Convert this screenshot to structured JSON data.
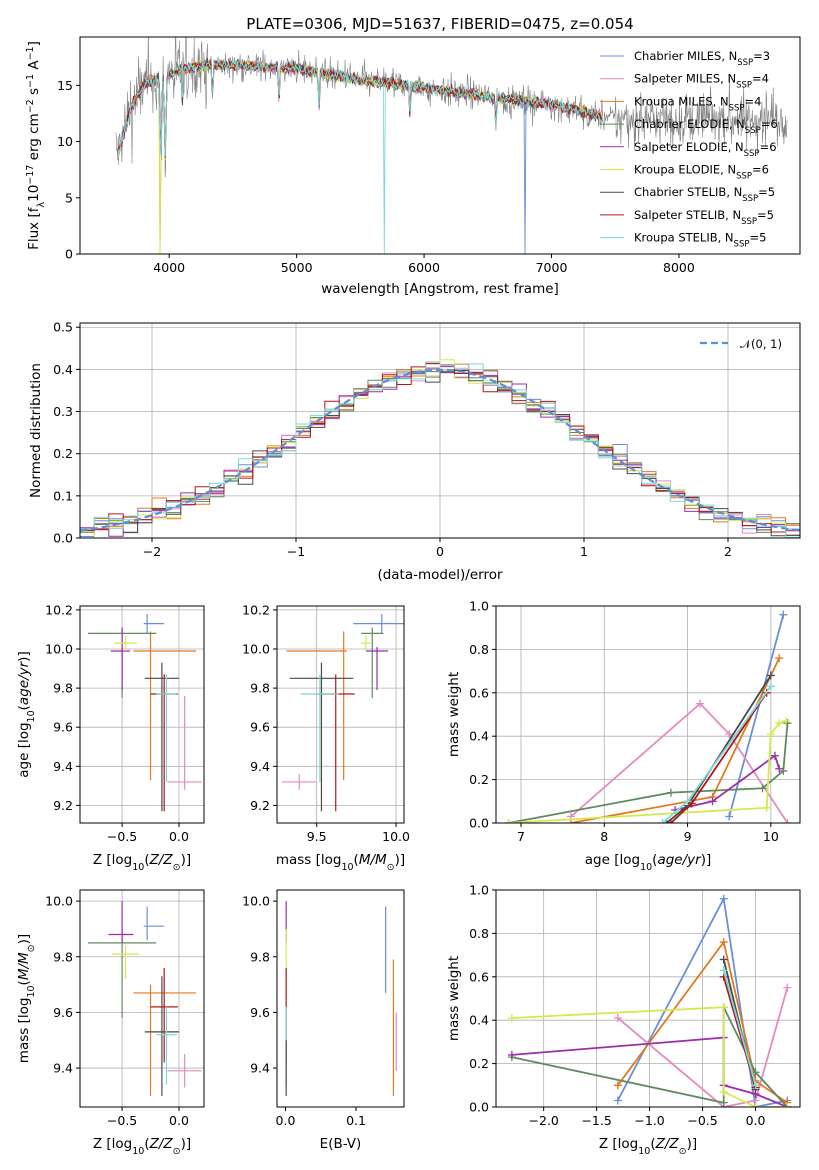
{
  "figure_title": "PLATE=0306, MJD=51637, FIBERID=0475, z=0.054",
  "colors": {
    "Chabrier MILES": "#6a8fd8",
    "Salpeter MILES": "#e58ac0",
    "Kroupa MILES": "#e07a20",
    "Chabrier ELODIE": "#5e8a5e",
    "Salpeter ELODIE": "#9b2fa8",
    "Kroupa ELODIE": "#d6e84f",
    "Chabrier STELIB": "#4a4a4a",
    "Salpeter STELIB": "#b01818",
    "Kroupa STELIB": "#7dd8d8",
    "data": "#7f7f7f"
  },
  "models": [
    {
      "name": "Chabrier MILES",
      "nssp": "3"
    },
    {
      "name": "Salpeter MILES",
      "nssp": "4"
    },
    {
      "name": "Kroupa MILES",
      "nssp": "4"
    },
    {
      "name": "Chabrier ELODIE",
      "nssp": "6"
    },
    {
      "name": "Salpeter ELODIE",
      "nssp": "6"
    },
    {
      "name": "Kroupa ELODIE",
      "nssp": "6"
    },
    {
      "name": "Chabrier STELIB",
      "nssp": "5"
    },
    {
      "name": "Salpeter STELIB",
      "nssp": "5"
    },
    {
      "name": "Kroupa STELIB",
      "nssp": "5"
    }
  ],
  "chart_data": [
    {
      "id": "spectrum",
      "type": "line",
      "xlabel": "wavelength [Angstrom, rest frame]",
      "ylabel": "Flux [f_λ10^-17 erg cm^-2 s^-1 A^-1]",
      "xlim": [
        3300,
        8950
      ],
      "ylim": [
        0,
        19.3
      ],
      "xticks": [
        4000,
        5000,
        6000,
        7000,
        8000
      ],
      "yticks": [
        0,
        5,
        10,
        15
      ],
      "legend": "top-right",
      "continuum": {
        "x": [
          3600,
          3700,
          3800,
          3900,
          4000,
          4100,
          4300,
          4500,
          5000,
          5500,
          6000,
          6500,
          7000,
          7500,
          7900
        ],
        "y": [
          9,
          13,
          15,
          15.5,
          16,
          16.5,
          16.8,
          16.8,
          16.5,
          15.5,
          14.8,
          14,
          13.3,
          12,
          12
        ]
      },
      "data_range": [
        3580,
        8850
      ],
      "model_range": [
        3600,
        7400
      ],
      "absorption_lines": [
        3934,
        3969,
        4102,
        4340,
        4861,
        5175,
        5890,
        6563
      ]
    },
    {
      "id": "residuals",
      "type": "line",
      "xlabel": "(data-model)/error",
      "ylabel": "Normed distribution",
      "xlim": [
        -2.5,
        2.5
      ],
      "ylim": [
        0,
        0.51
      ],
      "xticks": [
        -2,
        -1,
        0,
        1,
        2
      ],
      "yticks": [
        0.0,
        0.1,
        0.2,
        0.3,
        0.4,
        0.5
      ],
      "grid": true,
      "legend": "top-right",
      "reference_label": "𝒩(0, 1)",
      "bin_width": 0.1
    },
    {
      "id": "age_vs_Z",
      "type": "scatter",
      "xlabel": "Z [log10(Z/Z☉)]",
      "ylabel": "age [log10(age/yr)]",
      "xlim": [
        -0.87,
        0.22
      ],
      "ylim": [
        9.11,
        10.22
      ],
      "xticks": [
        -0.5,
        0.0
      ],
      "yticks": [
        9.2,
        9.4,
        9.6,
        9.8,
        10.0,
        10.2
      ],
      "grid": true,
      "points": [
        {
          "model": "Chabrier MILES",
          "x": -0.28,
          "xerr": [
            0.03,
            0.15
          ],
          "y": 10.13,
          "yerr": [
            0.05,
            0.05
          ]
        },
        {
          "model": "Salpeter MILES",
          "x": 0.05,
          "xerr": [
            0.15,
            0.15
          ],
          "y": 9.32,
          "yerr": [
            0.04,
            0.44
          ]
        },
        {
          "model": "Kroupa MILES",
          "x": -0.25,
          "xerr": [
            0.15,
            0.4
          ],
          "y": 9.99,
          "yerr": [
            0.66,
            0.1
          ]
        },
        {
          "model": "Chabrier ELODIE",
          "x": -0.5,
          "xerr": [
            0.3,
            0.3
          ],
          "y": 10.08,
          "yerr": [
            0.33,
            0.03
          ]
        },
        {
          "model": "Salpeter ELODIE",
          "x": -0.5,
          "xerr": [
            0.1,
            0.07
          ],
          "y": 9.99,
          "yerr": [
            0.2,
            0.12
          ]
        },
        {
          "model": "Kroupa ELODIE",
          "x": -0.47,
          "xerr": [
            0.1,
            0.1
          ],
          "y": 10.03,
          "yerr": [
            0.04,
            0.04
          ]
        },
        {
          "model": "Chabrier STELIB",
          "x": -0.15,
          "xerr": [
            0.15,
            0.15
          ],
          "y": 9.85,
          "yerr": [
            0.68,
            0.08
          ]
        },
        {
          "model": "Salpeter STELIB",
          "x": -0.13,
          "xerr": [
            0.12,
            0.12
          ],
          "y": 9.77,
          "yerr": [
            0.6,
            0.1
          ]
        },
        {
          "model": "Kroupa STELIB",
          "x": -0.11,
          "xerr": [
            0.09,
            0.09
          ],
          "y": 9.77,
          "yerr": [
            0.45,
            0.1
          ]
        }
      ]
    },
    {
      "id": "age_vs_mass",
      "type": "scatter",
      "xlabel": "mass [log10(M/M☉)]",
      "ylabel": "",
      "xlim": [
        9.25,
        10.05
      ],
      "ylim": [
        9.11,
        10.22
      ],
      "xticks": [
        9.5,
        10.0
      ],
      "yticks": [
        9.2,
        9.4,
        9.6,
        9.8,
        10.0,
        10.2
      ],
      "grid": true,
      "points": [
        {
          "model": "Chabrier MILES",
          "x": 9.91,
          "xerr": [
            0.18,
            0.15
          ],
          "y": 10.13,
          "yerr": [
            0.05,
            0.05
          ]
        },
        {
          "model": "Salpeter MILES",
          "x": 9.39,
          "xerr": [
            0.11,
            0.11
          ],
          "y": 9.32,
          "yerr": [
            0.04,
            0.04
          ]
        },
        {
          "model": "Kroupa MILES",
          "x": 9.67,
          "xerr": [
            0.36,
            0.02
          ],
          "y": 9.99,
          "yerr": [
            0.66,
            0.1
          ]
        },
        {
          "model": "Chabrier ELODIE",
          "x": 9.85,
          "xerr": [
            0.07,
            0.07
          ],
          "y": 10.08,
          "yerr": [
            0.33,
            0.03
          ]
        },
        {
          "model": "Salpeter ELODIE",
          "x": 9.88,
          "xerr": [
            0.07,
            0.07
          ],
          "y": 9.99,
          "yerr": [
            0.2,
            0.02
          ]
        },
        {
          "model": "Kroupa ELODIE",
          "x": 9.81,
          "xerr": [
            0.03,
            0.03
          ],
          "y": 10.03,
          "yerr": [
            0.04,
            0.04
          ]
        },
        {
          "model": "Chabrier STELIB",
          "x": 9.53,
          "xerr": [
            0.2,
            0.2
          ],
          "y": 9.85,
          "yerr": [
            0.68,
            0.08
          ]
        },
        {
          "model": "Salpeter STELIB",
          "x": 9.62,
          "xerr": [
            0.12,
            0.12
          ],
          "y": 9.77,
          "yerr": [
            0.6,
            0.1
          ]
        },
        {
          "model": "Kroupa STELIB",
          "x": 9.52,
          "xerr": [
            0.12,
            0.12
          ],
          "y": 9.77,
          "yerr": [
            0.45,
            0.1
          ]
        }
      ]
    },
    {
      "id": "mass_weight_vs_age",
      "type": "line",
      "xlabel": "age [log10(age/yr)]",
      "ylabel": "mass weight",
      "xlim": [
        6.7,
        10.35
      ],
      "ylim": [
        0,
        1.0
      ],
      "xticks": [
        7,
        8,
        9,
        10
      ],
      "yticks": [
        0.0,
        0.2,
        0.4,
        0.6,
        0.8,
        1.0
      ],
      "grid": true,
      "series": [
        {
          "model": "Chabrier MILES",
          "x": [
            9.5,
            10.15
          ],
          "y": [
            0.03,
            0.96
          ]
        },
        {
          "model": "Salpeter MILES",
          "x": [
            7.6,
            9.15,
            9.5,
            10.2
          ],
          "y": [
            0.03,
            0.55,
            0.41,
            0.0
          ]
        },
        {
          "model": "Kroupa MILES",
          "x": [
            7.6,
            9.3,
            10.1
          ],
          "y": [
            0.0,
            0.12,
            0.76
          ]
        },
        {
          "model": "Chabrier ELODIE",
          "x": [
            6.85,
            8.8,
            9.9,
            10.15,
            10.2
          ],
          "y": [
            0.0,
            0.14,
            0.16,
            0.24,
            0.46
          ]
        },
        {
          "model": "Salpeter ELODIE",
          "x": [
            8.85,
            9.3,
            10.05,
            10.1
          ],
          "y": [
            0.06,
            0.1,
            0.31,
            0.25
          ]
        },
        {
          "model": "Kroupa ELODIE",
          "x": [
            6.85,
            9.95,
            10.0,
            10.1,
            10.18
          ],
          "y": [
            0.0,
            0.07,
            0.41,
            0.46,
            0.47
          ]
        },
        {
          "model": "Chabrier STELIB",
          "x": [
            8.75,
            9.0,
            10.0
          ],
          "y": [
            0.0,
            0.08,
            0.68
          ]
        },
        {
          "model": "Salpeter STELIB",
          "x": [
            8.8,
            9.05,
            9.95
          ],
          "y": [
            0.0,
            0.09,
            0.6
          ]
        },
        {
          "model": "Kroupa STELIB",
          "x": [
            8.7,
            9.0,
            10.0
          ],
          "y": [
            0.0,
            0.1,
            0.63
          ]
        }
      ]
    },
    {
      "id": "mass_vs_Z",
      "type": "scatter",
      "xlabel": "Z [log10(Z/Z☉)]",
      "ylabel": "mass [log10(M/M☉)]",
      "xlim": [
        -0.87,
        0.22
      ],
      "ylim": [
        9.26,
        10.04
      ],
      "xticks": [
        -0.5,
        0.0
      ],
      "yticks": [
        9.4,
        9.6,
        9.8,
        10.0
      ],
      "grid": true,
      "points": [
        {
          "model": "Chabrier MILES",
          "x": -0.28,
          "xerr": [
            0.03,
            0.15
          ],
          "y": 9.91,
          "yerr": [
            0.05,
            0.07
          ]
        },
        {
          "model": "Salpeter MILES",
          "x": 0.05,
          "xerr": [
            0.15,
            0.15
          ],
          "y": 9.39,
          "yerr": [
            0.06,
            0.06
          ]
        },
        {
          "model": "Kroupa MILES",
          "x": -0.25,
          "xerr": [
            0.15,
            0.4
          ],
          "y": 9.67,
          "yerr": [
            0.37,
            0.03
          ]
        },
        {
          "model": "Chabrier ELODIE",
          "x": -0.5,
          "xerr": [
            0.3,
            0.3
          ],
          "y": 9.85,
          "yerr": [
            0.27,
            0.06
          ]
        },
        {
          "model": "Salpeter ELODIE",
          "x": -0.5,
          "xerr": [
            0.12,
            0.1
          ],
          "y": 9.88,
          "yerr": [
            0.03,
            0.12
          ]
        },
        {
          "model": "Kroupa ELODIE",
          "x": -0.47,
          "xerr": [
            0.12,
            0.12
          ],
          "y": 9.81,
          "yerr": [
            0.09,
            0.03
          ]
        },
        {
          "model": "Chabrier STELIB",
          "x": -0.15,
          "xerr": [
            0.15,
            0.15
          ],
          "y": 9.53,
          "yerr": [
            0.23,
            0.2
          ]
        },
        {
          "model": "Salpeter STELIB",
          "x": -0.13,
          "xerr": [
            0.12,
            0.12
          ],
          "y": 9.62,
          "yerr": [
            0.2,
            0.14
          ]
        },
        {
          "model": "Kroupa STELIB",
          "x": -0.11,
          "xerr": [
            0.09,
            0.09
          ],
          "y": 9.52,
          "yerr": [
            0.18,
            0.1
          ]
        }
      ]
    },
    {
      "id": "mass_vs_ebv",
      "type": "scatter",
      "xlabel": "E(B-V)",
      "ylabel": "",
      "xlim": [
        -0.012,
        0.168
      ],
      "ylim": [
        9.26,
        10.04
      ],
      "xticks": [
        0.0,
        0.1
      ],
      "yticks": [
        9.4,
        9.6,
        9.8,
        10.0
      ],
      "grid": false,
      "points": [
        {
          "model": "Chabrier MILES",
          "x": 0.142,
          "y": 9.82,
          "yerr": [
            0.15,
            0.16
          ]
        },
        {
          "model": "Kroupa MILES",
          "x": 0.153,
          "y": 9.55,
          "yerr": [
            0.25,
            0.24
          ]
        },
        {
          "model": "Salpeter MILES",
          "x": 0.157,
          "y": 9.45,
          "yerr": [
            0.06,
            0.15
          ]
        },
        {
          "model": "Salpeter ELODIE",
          "x": 0.001,
          "y": 9.88,
          "yerr": [
            0.03,
            0.12
          ]
        },
        {
          "model": "Kroupa ELODIE",
          "x": 0.001,
          "y": 9.81,
          "yerr": [
            0.09,
            0.09
          ]
        },
        {
          "model": "Salpeter STELIB",
          "x": 0.001,
          "y": 9.62,
          "yerr": [
            0.2,
            0.14
          ]
        },
        {
          "model": "Kroupa STELIB",
          "x": 0.001,
          "y": 9.52,
          "yerr": [
            0.18,
            0.1
          ]
        },
        {
          "model": "Chabrier STELIB",
          "x": 0.001,
          "y": 9.4,
          "yerr": [
            0.1,
            0.1
          ]
        }
      ]
    },
    {
      "id": "mass_weight_vs_Z",
      "type": "line",
      "xlabel": "Z [log10(Z/Z☉)]",
      "ylabel": "mass weight",
      "xlim": [
        -2.45,
        0.42
      ],
      "ylim": [
        0,
        1.0
      ],
      "xticks": [
        -2.0,
        -1.5,
        -1.0,
        -0.5,
        0.0
      ],
      "yticks": [
        0.0,
        0.2,
        0.4,
        0.6,
        0.8,
        1.0
      ],
      "grid": true,
      "series": [
        {
          "model": "Chabrier MILES",
          "x": [
            -1.3,
            -0.3,
            0.0,
            0.3
          ],
          "y": [
            0.03,
            0.96,
            0.0,
            0.03
          ]
        },
        {
          "model": "Salpeter MILES",
          "x": [
            -1.3,
            -0.3,
            0.0,
            0.3
          ],
          "y": [
            0.41,
            0.0,
            0.03,
            0.55
          ]
        },
        {
          "model": "Kroupa MILES",
          "x": [
            -1.3,
            -0.3,
            0.0,
            0.3
          ],
          "y": [
            0.1,
            0.76,
            0.12,
            0.02
          ]
        },
        {
          "model": "Chabrier ELODIE",
          "x": [
            -2.3,
            -0.3,
            -0.3,
            0.0,
            0.3
          ],
          "y": [
            0.23,
            0.02,
            0.46,
            0.16,
            0.0
          ]
        },
        {
          "model": "Salpeter ELODIE",
          "x": [
            -2.3,
            -0.3,
            -0.3,
            0.0,
            0.3
          ],
          "y": [
            0.24,
            0.32,
            0.1,
            0.06,
            0.0
          ]
        },
        {
          "model": "Kroupa ELODIE",
          "x": [
            -2.3,
            -0.3,
            -0.3,
            0.0,
            0.3
          ],
          "y": [
            0.41,
            0.46,
            0.07,
            0.0,
            0.0
          ]
        },
        {
          "model": "Chabrier STELIB",
          "x": [
            -0.3,
            0.0
          ],
          "y": [
            0.68,
            0.08
          ]
        },
        {
          "model": "Salpeter STELIB",
          "x": [
            -0.3,
            0.0
          ],
          "y": [
            0.6,
            0.09
          ]
        },
        {
          "model": "Kroupa STELIB",
          "x": [
            -0.3,
            0.0
          ],
          "y": [
            0.63,
            0.1
          ]
        }
      ]
    }
  ]
}
